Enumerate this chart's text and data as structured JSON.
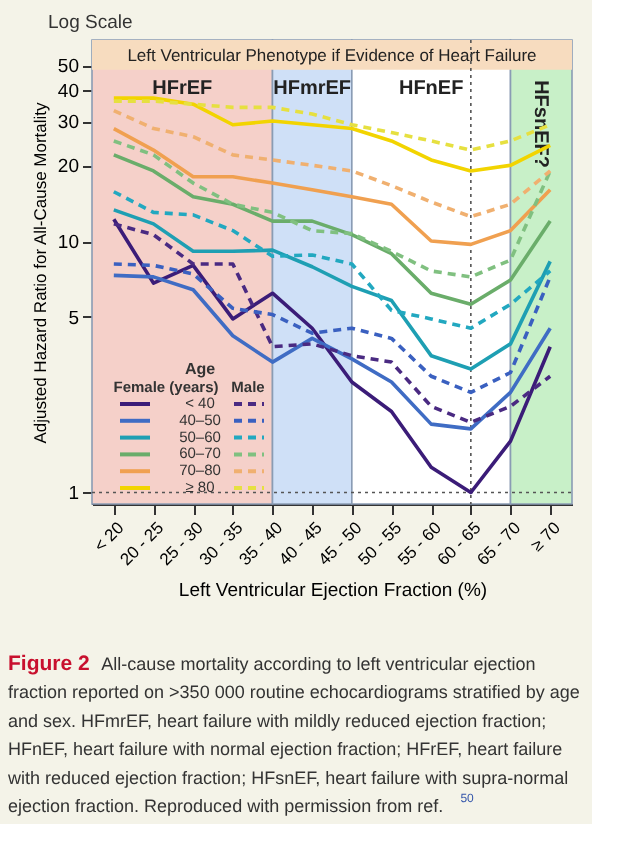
{
  "chart_data": {
    "type": "line",
    "log": "y",
    "xlabel": "Left Ventricular Ejection Fraction (%)",
    "ylabel": "Adjusted Hazard Ratio for All-Cause Mortality",
    "legend_title": "Age",
    "legend": "bottom left",
    "categories": [
      "< 20",
      "20 - 25",
      "25 - 30",
      "30 - 35",
      "35 - 40",
      "40 - 45",
      "45 - 50",
      "50 - 55",
      "55 - 60",
      "60 - 65",
      "65 - 70",
      "≥ 70"
    ],
    "ylim": [
      0.9,
      63
    ],
    "yticks": [
      1,
      5,
      10,
      20,
      30,
      40,
      50
    ],
    "series": [
      {
        "name": "< 40",
        "color": "#3b1c78",
        "line_style": "solid",
        "values": [
          12.2,
          6.8,
          8.0,
          4.9,
          6.2,
          4.5,
          2.75,
          2.1,
          1.26,
          1.0,
          1.6,
          3.8
        ]
      },
      {
        "name": "40–50",
        "color": "#3f6cc4",
        "line_style": "solid",
        "values": [
          7.3,
          7.2,
          6.4,
          4.2,
          3.3,
          4.1,
          3.4,
          2.75,
          1.87,
          1.79,
          2.5,
          4.5
        ]
      },
      {
        "name": "50–60",
        "color": "#1e9fb3",
        "line_style": "solid",
        "values": [
          13.3,
          11.7,
          9.1,
          9.1,
          9.2,
          7.9,
          6.6,
          5.8,
          3.5,
          3.1,
          3.9,
          8.3
        ]
      },
      {
        "name": "60–70",
        "color": "#6aad6a",
        "line_style": "solid",
        "values": [
          22,
          19,
          15,
          14,
          12,
          12,
          10.6,
          8.9,
          6.2,
          5.6,
          7,
          12
        ]
      },
      {
        "name": "70–80",
        "color": "#f0a050",
        "line_style": "solid",
        "values": [
          28,
          23,
          18,
          18,
          17,
          16,
          15,
          14,
          10,
          9.7,
          11,
          16
        ]
      },
      {
        "name": "≥ 80",
        "color": "#f2d400",
        "line_style": "solid",
        "values": [
          37,
          37,
          35,
          29,
          30,
          29,
          28,
          25,
          21,
          19,
          20,
          24
        ]
      },
      {
        "color": "#4a2a82",
        "line_style": "dashed",
        "values": [
          11.7,
          10.6,
          8.1,
          8.1,
          3.8,
          3.9,
          3.5,
          3.3,
          2.2,
          1.9,
          2.2,
          2.9
        ]
      },
      {
        "color": "#3a60c0",
        "line_style": "dashed",
        "values": [
          8.1,
          8.0,
          7.4,
          5.4,
          5.1,
          4.3,
          4.5,
          4.1,
          2.9,
          2.5,
          3.0,
          7.2
        ]
      },
      {
        "color": "#22a8c0",
        "line_style": "dashed",
        "values": [
          15.7,
          13,
          12.7,
          11,
          8.7,
          8.8,
          8.1,
          5.3,
          4.9,
          4.5,
          5.6,
          7.6
        ]
      },
      {
        "color": "#80c080",
        "line_style": "dashed",
        "values": [
          25,
          22,
          17,
          14,
          13,
          11,
          10.7,
          9.1,
          7.6,
          7.2,
          8.4,
          19
        ]
      },
      {
        "color": "#f0b070",
        "line_style": "dashed",
        "values": [
          33,
          28,
          26,
          22,
          21,
          20,
          19,
          16.6,
          14.3,
          12.5,
          14,
          19
        ]
      },
      {
        "color": "#e6e040",
        "line_style": "dashed",
        "values": [
          36,
          36,
          35,
          34,
          34,
          32,
          29,
          27,
          25,
          23,
          25,
          29
        ]
      }
    ],
    "bands": [
      {
        "axis": "x",
        "from": "< 20",
        "to": "35 - 40",
        "label": "HFrEF",
        "color": "#f5d0c9"
      },
      {
        "axis": "x",
        "from": "35 - 40",
        "to": "45 - 50",
        "label": "HFmrEF",
        "color": "#cfe0f7"
      },
      {
        "axis": "x",
        "from": "45 - 50",
        "to": "65 - 70",
        "label": "HFnEF",
        "color": "#ffffff"
      },
      {
        "axis": "x",
        "from": "65 - 70",
        "to": "≥ 70",
        "label": "HFsnEF?",
        "color": "#c8f0c8"
      },
      {
        "axis": "y",
        "from": 48,
        "to": 63,
        "label": "Left Ventricular Phenotype if Evidence of Heart Failure",
        "color": "#f7dcbf"
      }
    ],
    "ref_lines": [
      {
        "axis": "x",
        "value": "60 - 65",
        "line_style": "dotted",
        "color": "#555555"
      },
      {
        "axis": "y",
        "value": 1,
        "line_style": "dotted",
        "color": "#555555"
      }
    ],
    "annotations": [
      "Log Scale",
      "Female (years)",
      "Male",
      "Figure 2",
      "All-cause mortality according to left ventricular ejection fraction reported on >350 000 routine echocardiograms stratified by age and sex. HFmrEF, heart failure with mildly reduced ejection fraction; HFnEF, heart failure with normal ejection fraction; HFrEF, heart failure with reduced ejection fraction; HFsnEF, heart failure with supra-normal ejection fraction. Reproduced with permission from ref.$^{50}$"
    ]
  }
}
